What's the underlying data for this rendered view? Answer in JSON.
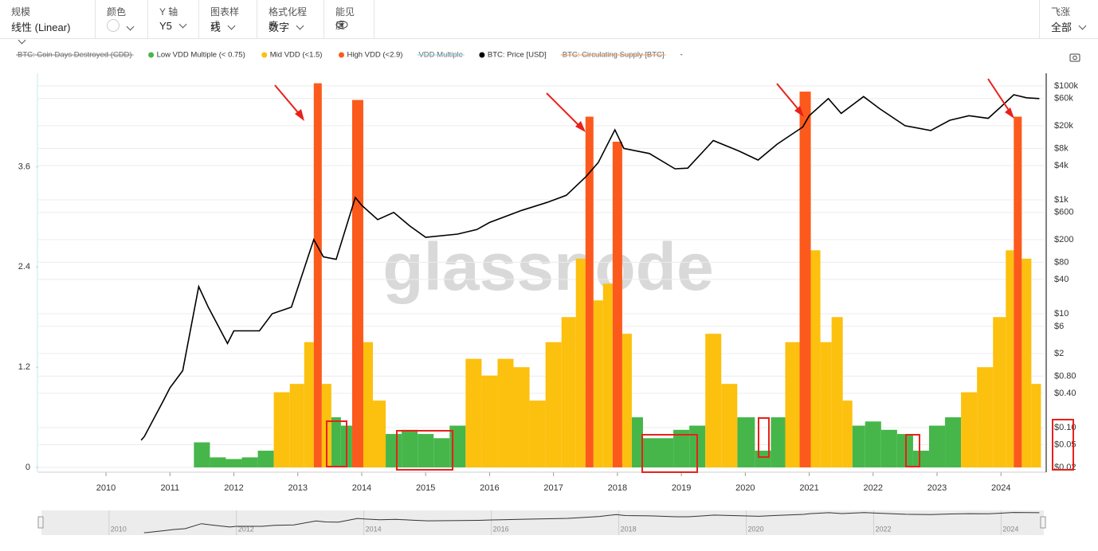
{
  "toolbar": {
    "items": [
      {
        "label": "规模",
        "value": "线性 (Linear)"
      },
      {
        "label": "颜色"
      },
      {
        "label": "Y 轴",
        "value": "Y5"
      },
      {
        "label": "图表样式",
        "value": "线"
      },
      {
        "label": "格式化程序",
        "value": "数字"
      },
      {
        "label": "能见度"
      }
    ],
    "zoom": {
      "label": "飞涨",
      "value": "全部"
    }
  },
  "chart_data": {
    "type": "area",
    "watermark": "glassnode",
    "x": [
      2011.5,
      2011.75,
      2012,
      2012.25,
      2012.5,
      2012.75,
      2013,
      2013.2,
      2013.3,
      2013.45,
      2013.6,
      2013.75,
      2013.95,
      2014.1,
      2014.25,
      2014.5,
      2014.75,
      2015,
      2015.25,
      2015.5,
      2015.75,
      2016,
      2016.25,
      2016.5,
      2016.75,
      2017,
      2017.25,
      2017.45,
      2017.55,
      2017.7,
      2017.85,
      2018,
      2018.15,
      2018.3,
      2018.5,
      2018.75,
      2019,
      2019.25,
      2019.5,
      2019.75,
      2020,
      2020.3,
      2020.5,
      2020.75,
      2020.95,
      2021.1,
      2021.25,
      2021.45,
      2021.6,
      2021.75,
      2022,
      2022.25,
      2022.5,
      2022.75,
      2023,
      2023.25,
      2023.5,
      2023.75,
      2024,
      2024.15,
      2024.25,
      2024.4,
      2024.55
    ],
    "series": [
      {
        "name": "BTC: Coin Days Destroyed (CDD)",
        "hidden": true,
        "color": "#888888"
      },
      {
        "name": "Low VDD Multiple (< 0.75)",
        "color": "#46b64a",
        "values": [
          0.3,
          0.12,
          0.1,
          0.12,
          0.2,
          null,
          null,
          null,
          null,
          null,
          0.6,
          0.5,
          null,
          null,
          null,
          0.4,
          0.45,
          0.4,
          0.35,
          0.5,
          null,
          null,
          null,
          null,
          null,
          null,
          null,
          null,
          null,
          null,
          null,
          null,
          null,
          0.6,
          0.35,
          0.35,
          0.45,
          0.5,
          null,
          null,
          0.6,
          0.2,
          0.6,
          null,
          null,
          null,
          null,
          null,
          null,
          0.5,
          0.55,
          0.45,
          0.4,
          0.2,
          0.5,
          0.6,
          null,
          null,
          null,
          null,
          null,
          null,
          null
        ]
      },
      {
        "name": "Mid VDD (<1.5)",
        "color": "#fcc00e",
        "values": [
          null,
          null,
          null,
          null,
          null,
          0.9,
          1.0,
          1.5,
          null,
          1.0,
          null,
          null,
          null,
          1.5,
          0.8,
          null,
          null,
          null,
          null,
          null,
          1.3,
          1.1,
          1.3,
          1.2,
          0.8,
          1.5,
          1.8,
          2.5,
          null,
          2.0,
          2.2,
          null,
          1.6,
          null,
          null,
          null,
          null,
          null,
          1.6,
          1.0,
          null,
          null,
          null,
          1.5,
          null,
          2.6,
          1.5,
          1.8,
          0.8,
          null,
          null,
          null,
          null,
          null,
          null,
          null,
          0.9,
          1.2,
          1.8,
          2.6,
          null,
          2.5,
          1.0
        ]
      },
      {
        "name": "High VDD (<2.9)",
        "color": "#fc5a1c",
        "values": [
          null,
          null,
          null,
          null,
          null,
          null,
          null,
          null,
          4.6,
          null,
          null,
          null,
          4.4,
          null,
          null,
          null,
          null,
          null,
          null,
          null,
          null,
          null,
          null,
          null,
          null,
          null,
          null,
          null,
          4.2,
          null,
          null,
          3.9,
          null,
          null,
          null,
          null,
          null,
          null,
          null,
          null,
          null,
          null,
          null,
          null,
          4.5,
          null,
          null,
          null,
          null,
          null,
          null,
          null,
          null,
          null,
          null,
          null,
          null,
          null,
          null,
          null,
          4.2,
          null,
          null
        ]
      },
      {
        "name": "VDD Multiple",
        "hidden": true,
        "color": "#8fd3ea"
      },
      {
        "name": "BTC: Price [USD]",
        "type": "line",
        "axis": "y2",
        "color": "#000000",
        "x": [
          2010.55,
          2010.6,
          2010.9,
          2011.0,
          2011.2,
          2011.45,
          2011.6,
          2011.9,
          2012.0,
          2012.4,
          2012.6,
          2012.9,
          2013.25,
          2013.4,
          2013.6,
          2013.9,
          2014.0,
          2014.25,
          2014.5,
          2014.75,
          2015.0,
          2015.5,
          2015.8,
          2016.0,
          2016.5,
          2016.9,
          2017.2,
          2017.5,
          2017.7,
          2017.96,
          2018.1,
          2018.5,
          2018.9,
          2019.1,
          2019.5,
          2019.9,
          2020.2,
          2020.5,
          2020.9,
          2021.0,
          2021.3,
          2021.5,
          2021.85,
          2022.1,
          2022.5,
          2022.9,
          2023.2,
          2023.5,
          2023.8,
          2024.0,
          2024.2,
          2024.4,
          2024.6
        ],
        "values": [
          0.06,
          0.07,
          0.3,
          0.5,
          1,
          30,
          13,
          3,
          5,
          5,
          10,
          13,
          200,
          100,
          90,
          1100,
          800,
          450,
          600,
          350,
          220,
          250,
          300,
          400,
          650,
          900,
          1200,
          2500,
          4500,
          17000,
          8000,
          6500,
          3500,
          3600,
          11000,
          7200,
          5000,
          9500,
          19000,
          30000,
          60000,
          33000,
          65000,
          40000,
          20000,
          16500,
          25000,
          30000,
          27000,
          43000,
          70000,
          62000,
          60000
        ]
      },
      {
        "name": "BTC: Circulating Supply [BTC]",
        "hidden": true,
        "color": "#f0a060"
      },
      {
        "name": "-"
      }
    ],
    "xlim": [
      2008.94,
      2024.67
    ],
    "xticks": [
      2010,
      2011,
      2012,
      2013,
      2014,
      2015,
      2016,
      2017,
      2018,
      2019,
      2020,
      2021,
      2022,
      2023,
      2024
    ],
    "ylim": [
      0,
      4.72
    ],
    "yticks": [
      0,
      1.2,
      2.4,
      3.6
    ],
    "y2lim": [
      0.02,
      167000
    ],
    "y2scale": "log",
    "y2ticks": [
      {
        "value": 100000,
        "label": "$100k"
      },
      {
        "value": 60000,
        "label": "$60k"
      },
      {
        "value": 20000,
        "label": "$20k"
      },
      {
        "value": 8000,
        "label": "$8k"
      },
      {
        "value": 4000,
        "label": "$4k"
      },
      {
        "value": 1000,
        "label": "$1k"
      },
      {
        "value": 600,
        "label": "$600"
      },
      {
        "value": 200,
        "label": "$200"
      },
      {
        "value": 80,
        "label": "$80"
      },
      {
        "value": 40,
        "label": "$40"
      },
      {
        "value": 10,
        "label": "$10"
      },
      {
        "value": 6,
        "label": "$6"
      },
      {
        "value": 2,
        "label": "$2"
      },
      {
        "value": 0.8,
        "label": "$0.80"
      },
      {
        "value": 0.4,
        "label": "$0.40"
      },
      {
        "value": 0.1,
        "label": "$0.10"
      },
      {
        "value": 0.05,
        "label": "$0.05"
      },
      {
        "value": 0.02,
        "label": "$0.02"
      }
    ],
    "navigator_xticks": [
      2010,
      2012,
      2014,
      2016,
      2018,
      2020,
      2022,
      2024
    ]
  }
}
